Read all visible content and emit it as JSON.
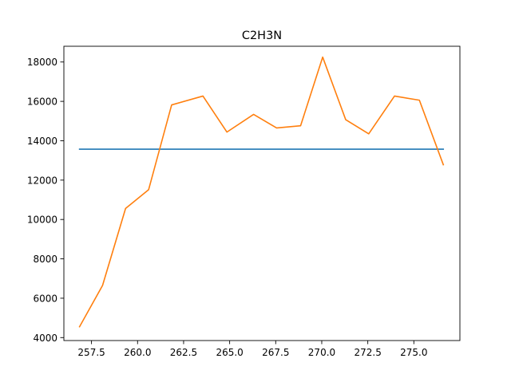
{
  "chart_data": {
    "type": "line",
    "title": "C2H3N",
    "xlabel": "",
    "ylabel": "",
    "xlim": [
      256.0,
      277.5
    ],
    "ylim": [
      3850,
      18800
    ],
    "xticks": [
      257.5,
      260.0,
      262.5,
      265.0,
      267.5,
      270.0,
      272.5,
      275.0
    ],
    "xtick_labels": [
      "257.5",
      "260.0",
      "262.5",
      "265.0",
      "267.5",
      "270.0",
      "272.5",
      "275.0"
    ],
    "yticks": [
      4000,
      6000,
      8000,
      10000,
      12000,
      14000,
      16000,
      18000
    ],
    "ytick_labels": [
      "4000",
      "6000",
      "8000",
      "10000",
      "12000",
      "14000",
      "16000",
      "18000"
    ],
    "grid": false,
    "legend": false,
    "series": [
      {
        "color": "#1f77b4",
        "x": [
          256.85,
          276.6
        ],
        "y": [
          13570,
          13570
        ]
      },
      {
        "color": "#ff7f0e",
        "x": [
          256.85,
          258.1,
          259.35,
          260.6,
          261.85,
          263.55,
          264.85,
          266.3,
          267.55,
          268.85,
          270.05,
          271.3,
          272.55,
          273.95,
          275.3,
          276.6
        ],
        "y": [
          4550,
          6650,
          10560,
          11510,
          15820,
          16270,
          14440,
          15340,
          14650,
          14760,
          18250,
          15070,
          14350,
          16270,
          16060,
          12780
        ]
      }
    ]
  }
}
